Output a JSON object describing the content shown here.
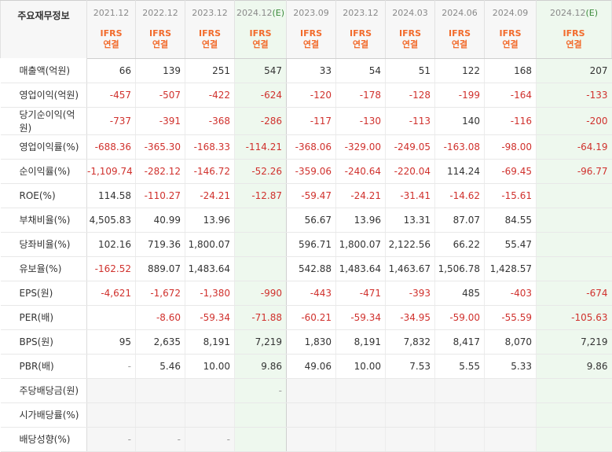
{
  "table": {
    "corner_label": "주요재무정보",
    "columns": [
      {
        "period": "2021.12",
        "estimate": "",
        "basis_line1": "IFRS",
        "basis_line2": "연결"
      },
      {
        "period": "2022.12",
        "estimate": "",
        "basis_line1": "IFRS",
        "basis_line2": "연결"
      },
      {
        "period": "2023.12",
        "estimate": "",
        "basis_line1": "IFRS",
        "basis_line2": "연결"
      },
      {
        "period": "2024.12",
        "estimate": "(E)",
        "basis_line1": "IFRS",
        "basis_line2": "연결"
      },
      {
        "period": "2023.09",
        "estimate": "",
        "basis_line1": "IFRS",
        "basis_line2": "연결"
      },
      {
        "period": "2023.12",
        "estimate": "",
        "basis_line1": "IFRS",
        "basis_line2": "연결"
      },
      {
        "period": "2024.03",
        "estimate": "",
        "basis_line1": "IFRS",
        "basis_line2": "연결"
      },
      {
        "period": "2024.06",
        "estimate": "",
        "basis_line1": "IFRS",
        "basis_line2": "연결"
      },
      {
        "period": "2024.09",
        "estimate": "",
        "basis_line1": "IFRS",
        "basis_line2": "연결"
      },
      {
        "period": "2024.12",
        "estimate": "(E)",
        "basis_line1": "IFRS",
        "basis_line2": "연결"
      }
    ],
    "rows": [
      {
        "label": "매출액(억원)",
        "values": [
          "66",
          "139",
          "251",
          "547",
          "33",
          "54",
          "51",
          "122",
          "168",
          "207"
        ]
      },
      {
        "label": "영업이익(억원)",
        "values": [
          "-457",
          "-507",
          "-422",
          "-624",
          "-120",
          "-178",
          "-128",
          "-199",
          "-164",
          "-133"
        ]
      },
      {
        "label": "당기순이익(억원)",
        "values": [
          "-737",
          "-391",
          "-368",
          "-286",
          "-117",
          "-130",
          "-113",
          "140",
          "-116",
          "-200"
        ]
      },
      {
        "label": "영업이익률(%)",
        "values": [
          "-688.36",
          "-365.30",
          "-168.33",
          "-114.21",
          "-368.06",
          "-329.00",
          "-249.05",
          "-163.08",
          "-98.00",
          "-64.19"
        ]
      },
      {
        "label": "순이익률(%)",
        "values": [
          "-1,109.74",
          "-282.12",
          "-146.72",
          "-52.26",
          "-359.06",
          "-240.64",
          "-220.04",
          "114.24",
          "-69.45",
          "-96.77"
        ]
      },
      {
        "label": "ROE(%)",
        "values": [
          "114.58",
          "-110.27",
          "-24.21",
          "-12.87",
          "-59.47",
          "-24.21",
          "-31.41",
          "-14.62",
          "-15.61",
          ""
        ]
      },
      {
        "label": "부채비율(%)",
        "values": [
          "4,505.83",
          "40.99",
          "13.96",
          "",
          "56.67",
          "13.96",
          "13.31",
          "87.07",
          "84.55",
          ""
        ]
      },
      {
        "label": "당좌비율(%)",
        "values": [
          "102.16",
          "719.36",
          "1,800.07",
          "",
          "596.71",
          "1,800.07",
          "2,122.56",
          "66.22",
          "55.47",
          ""
        ]
      },
      {
        "label": "유보율(%)",
        "values": [
          "-162.52",
          "889.07",
          "1,483.64",
          "",
          "542.88",
          "1,483.64",
          "1,463.67",
          "1,506.78",
          "1,428.57",
          ""
        ]
      },
      {
        "label": "EPS(원)",
        "values": [
          "-4,621",
          "-1,672",
          "-1,380",
          "-990",
          "-443",
          "-471",
          "-393",
          "485",
          "-403",
          "-674"
        ]
      },
      {
        "label": "PER(배)",
        "values": [
          "",
          "-8.60",
          "-59.34",
          "-71.88",
          "-60.21",
          "-59.34",
          "-34.95",
          "-59.00",
          "-55.59",
          "-105.63"
        ]
      },
      {
        "label": "BPS(원)",
        "values": [
          "95",
          "2,635",
          "8,191",
          "7,219",
          "1,830",
          "8,191",
          "7,832",
          "8,417",
          "8,070",
          "7,219"
        ]
      },
      {
        "label": "PBR(배)",
        "values": [
          "-",
          "5.46",
          "10.00",
          "9.86",
          "49.06",
          "10.00",
          "7.53",
          "5.55",
          "5.33",
          "9.86"
        ]
      },
      {
        "label": "주당배당금(원)",
        "values": [
          "",
          "",
          "",
          "-",
          "",
          "",
          "",
          "",
          "",
          ""
        ]
      },
      {
        "label": "시가배당률(%)",
        "values": [
          "",
          "",
          "",
          "",
          "",
          "",
          "",
          "",
          "",
          ""
        ]
      },
      {
        "label": "배당성향(%)",
        "values": [
          "-",
          "-",
          "-",
          "",
          "",
          "",
          "",
          "",
          "",
          ""
        ]
      }
    ],
    "group_starts": [
      0,
      6,
      9,
      13
    ],
    "gray_rows": [
      13,
      14,
      15
    ],
    "estimate_column_indices": [
      3,
      9
    ],
    "quarter_separator_index": 4,
    "colors": {
      "negative": "#d0312d",
      "basis": "#f26b2c",
      "estimate_tag": "#3a8a3a",
      "estimate_bg": "#eef8ee"
    }
  }
}
